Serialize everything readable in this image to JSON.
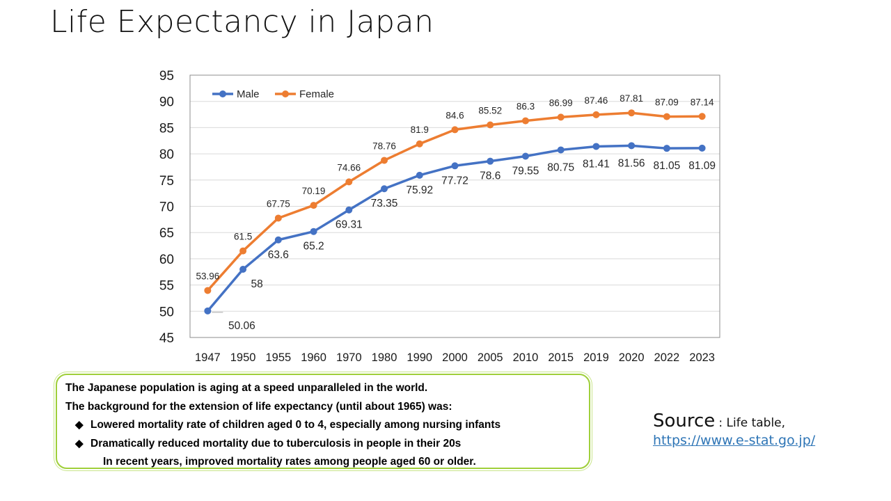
{
  "page": {
    "title": "Life Expectancy in Japan"
  },
  "note": {
    "line1": "The Japanese population is aging at a speed unparalleled in the world.",
    "line2": "The background for the extension of life expectancy (until about 1965) was:",
    "bullet_symbol": "◆",
    "bullet1": "Lowered mortality rate of children aged 0 to 4, especially among nursing infants",
    "bullet2": "Dramatically reduced mortality due to tuberculosis in people in their 20s",
    "line5": "In recent years, improved mortality rates among people aged 60 or older."
  },
  "source": {
    "heading": "Source",
    "label": ": Life table,",
    "link_text": "https://www.e-stat.go.jp/"
  },
  "colors": {
    "male": "#4472c4",
    "female": "#ed7d31",
    "grid": "#d9d9d9",
    "note_border": "#9fcf3a"
  },
  "chart_data": {
    "type": "line",
    "title": "",
    "xlabel": "",
    "ylabel": "",
    "ylim": [
      45,
      95
    ],
    "yticks": [
      45,
      50,
      55,
      60,
      65,
      70,
      75,
      80,
      85,
      90,
      95
    ],
    "grid": true,
    "legend_position": "top-left",
    "categories": [
      "1947",
      "1950",
      "1955",
      "1960",
      "1970",
      "1980",
      "1990",
      "2000",
      "2005",
      "2010",
      "2015",
      "2019",
      "2020",
      "2022",
      "2023"
    ],
    "series": [
      {
        "name": "Male",
        "color": "#4472c4",
        "values": [
          50.06,
          58,
          63.6,
          65.2,
          69.31,
          73.35,
          75.92,
          77.72,
          78.6,
          79.55,
          80.75,
          81.41,
          81.56,
          81.05,
          81.09
        ],
        "labels": [
          "50.06",
          "58",
          "63.6",
          "65.2",
          "69.31",
          "73.35",
          "75.92",
          "77.72",
          "78.6",
          "79.55",
          "80.75",
          "81.41",
          "81.56",
          "81.05",
          "81.09"
        ]
      },
      {
        "name": "Female",
        "color": "#ed7d31",
        "values": [
          53.96,
          61.5,
          67.75,
          70.19,
          74.66,
          78.76,
          81.9,
          84.6,
          85.52,
          86.3,
          86.99,
          87.46,
          87.81,
          87.09,
          87.14
        ],
        "labels": [
          "53.96",
          "61.5",
          "67.75",
          "70.19",
          "74.66",
          "78.76",
          "81.9",
          "84.6",
          "85.52",
          "86.3",
          "86.99",
          "87.46",
          "87.81",
          "87.09",
          "87.14"
        ]
      }
    ]
  }
}
